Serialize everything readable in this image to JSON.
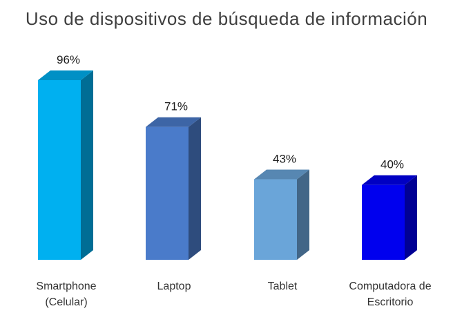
{
  "chart_data": {
    "type": "bar",
    "title": "Uso de dispositivos de búsqueda de información",
    "categories": [
      [
        "Smartphone",
        "(Celular)"
      ],
      [
        "Laptop"
      ],
      [
        "Tablet"
      ],
      [
        "Computadora de",
        "Escritorio"
      ]
    ],
    "values": [
      96,
      71,
      43,
      40
    ],
    "value_labels": [
      "96%",
      "71%",
      "43%",
      "40%"
    ],
    "ylim": [
      0,
      100
    ],
    "grid": false,
    "legend": "none",
    "style": "3d-column",
    "colors": [
      "#00b0f0",
      "#4a7bca",
      "#6aa5d9",
      "#0000ee"
    ]
  }
}
